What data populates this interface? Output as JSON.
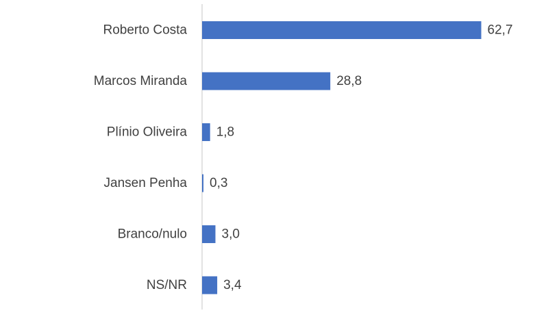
{
  "chart_data": {
    "type": "bar",
    "orientation": "horizontal",
    "categories": [
      "Roberto Costa",
      "Marcos Miranda",
      "Plínio Oliveira",
      "Jansen Penha",
      "Branco/nulo",
      "NS/NR"
    ],
    "values": [
      62.7,
      28.8,
      1.8,
      0.3,
      3.0,
      3.4
    ],
    "value_labels": [
      "62,7",
      "28,8",
      "1,8",
      "0,3",
      "3,0",
      "3,4"
    ],
    "title": "",
    "xlabel": "",
    "ylabel": "",
    "xlim": [
      0,
      65
    ],
    "grid": false,
    "legend": "none",
    "bar_color": "#4472c4",
    "axis_color": "#d9d9d9"
  }
}
